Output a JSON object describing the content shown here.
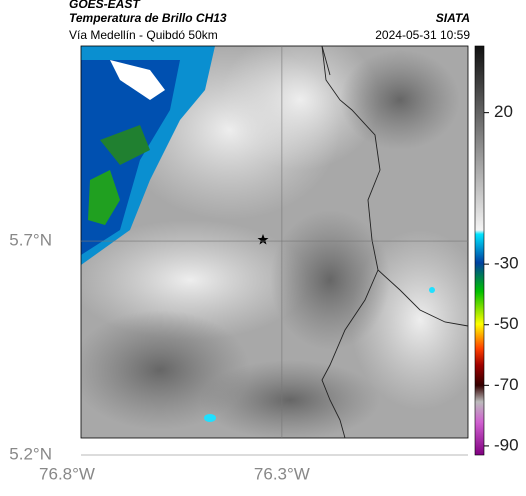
{
  "header": {
    "title": "GOES-EAST",
    "subtitle": "Temperatura de Brillo CH13",
    "source": "SIATA",
    "route": "Vía Medellín - Quibdó 50km",
    "timestamp": "2024-05-31 10:59"
  },
  "map": {
    "lat_range": [
      5.2,
      6.156
    ],
    "lon_range": [
      -76.8,
      -75.867
    ],
    "lat_ticks": [
      {
        "value": 5.7,
        "label": "5.7°N"
      },
      {
        "value": 5.2,
        "label": "5.2°N"
      }
    ],
    "lon_ticks": [
      {
        "value": -76.8,
        "label": "76.8°W"
      },
      {
        "value": -76.3,
        "label": "76.3°W"
      }
    ]
  },
  "colorbar": {
    "range": [
      -93,
      42
    ],
    "ticks": [
      20,
      -30,
      -50,
      -70,
      -90
    ]
  }
}
